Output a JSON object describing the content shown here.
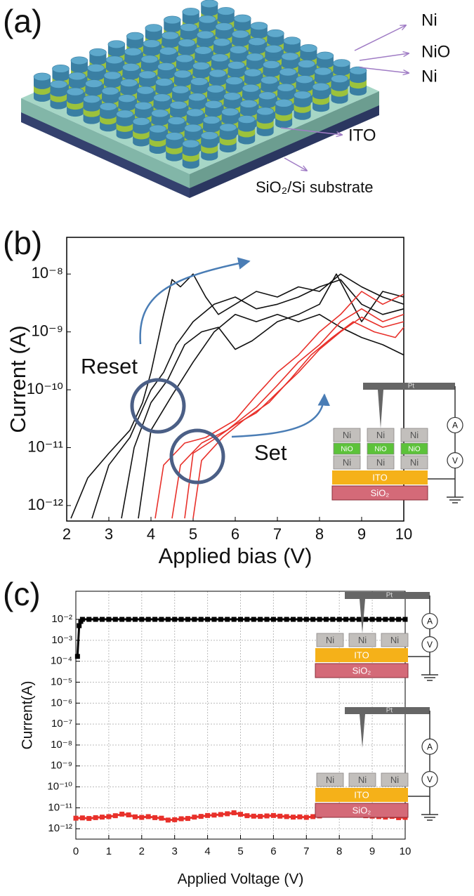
{
  "illustration": {
    "label": "(a)",
    "layer_labels": [
      "Ni",
      "NiO",
      "Ni",
      "ITO",
      "SiO₂/Si substrate"
    ]
  },
  "chart_data": [
    {
      "type": "line",
      "panel_label": "(b)",
      "xlabel": "Applied bias (V)",
      "ylabel": "Current (A)",
      "log_y": true,
      "xlim": [
        2,
        10
      ],
      "ylim": [
        5.4e-13,
        4.3e-08
      ],
      "xticks": [
        2,
        3,
        4,
        5,
        6,
        7,
        8,
        9,
        10
      ],
      "yticks": [
        {
          "value": 1e-12,
          "label": "10⁻¹²"
        },
        {
          "value": 1e-11,
          "label": "10⁻¹¹"
        },
        {
          "value": 1e-10,
          "label": "10⁻¹⁰"
        },
        {
          "value": 1e-09,
          "label": "10⁻⁹"
        },
        {
          "value": 1e-08,
          "label": "10⁻⁸"
        }
      ],
      "grid": false,
      "series": [
        {
          "color": "#111111",
          "x": [
            2.1,
            2.5,
            3,
            3.5,
            3.8,
            4.0,
            4.3,
            4.5,
            4.7,
            5,
            5.3,
            5.6,
            6,
            6.5,
            7,
            7.5,
            8,
            8.5,
            9,
            9.5,
            10
          ],
          "values": [
            6e-13,
            3e-12,
            8e-12,
            2e-11,
            6e-11,
            2e-10,
            2e-09,
            8e-09,
            6e-09,
            1e-08,
            4e-09,
            2e-09,
            3e-09,
            5e-09,
            4e-09,
            6e-09,
            5e-09,
            1e-08,
            6e-09,
            4e-09,
            3e-09
          ]
        },
        {
          "color": "#111111",
          "x": [
            2.6,
            3,
            3.5,
            4,
            4.3,
            4.6,
            5,
            5.5,
            6,
            6.5,
            7,
            7.5,
            8,
            8.5,
            9,
            9.5,
            10
          ],
          "values": [
            6e-13,
            5e-12,
            1.5e-11,
            1e-10,
            2e-10,
            6e-10,
            1.5e-09,
            3e-09,
            4e-09,
            2.5e-09,
            3e-09,
            4e-09,
            6e-09,
            8e-09,
            3e-09,
            2e-09,
            2.5e-09
          ]
        },
        {
          "color": "#111111",
          "x": [
            3.3,
            3.6,
            4,
            4.4,
            4.8,
            5.2,
            5.6,
            6,
            6.4,
            7,
            7.5,
            8,
            8.4,
            9,
            9.5,
            10
          ],
          "values": [
            6e-13,
            1e-11,
            6e-11,
            1.5e-10,
            6e-10,
            1e-09,
            1.2e-09,
            5e-10,
            7e-10,
            1.5e-09,
            2e-09,
            3e-09,
            1e-08,
            1.5e-09,
            5e-09,
            4e-09
          ]
        },
        {
          "color": "#111111",
          "x": [
            3.7,
            4,
            4.5,
            5,
            5.5,
            6,
            6.5,
            7,
            7.5,
            8,
            8.5,
            9,
            9.5,
            10
          ],
          "values": [
            6e-13,
            2e-11,
            8e-11,
            3e-10,
            1e-09,
            2e-09,
            1.5e-09,
            2e-09,
            1.5e-09,
            2e-09,
            1.2e-09,
            8e-10,
            6e-10,
            4e-10
          ]
        },
        {
          "color": "#e8302a",
          "x": [
            4.1,
            4.3,
            4.8,
            5.3,
            6,
            6.5,
            7,
            7.5,
            8,
            8.5,
            9,
            9.5,
            10
          ],
          "values": [
            6e-13,
            5e-12,
            1.2e-11,
            1.5e-11,
            3e-11,
            8e-11,
            2e-10,
            4e-10,
            1e-09,
            2e-09,
            5e-09,
            3e-09,
            4.5e-09
          ]
        },
        {
          "color": "#e8302a",
          "x": [
            4.5,
            4.7,
            5.2,
            5.8,
            6.5,
            7,
            7.5,
            8,
            8.5,
            9,
            9.5,
            10
          ],
          "values": [
            6e-13,
            5e-12,
            1.2e-11,
            2e-11,
            5e-11,
            1.2e-10,
            3e-10,
            6e-10,
            1.5e-09,
            2.5e-09,
            1.5e-09,
            2e-09
          ]
        },
        {
          "color": "#e8302a",
          "x": [
            4.8,
            5,
            5.5,
            6,
            6.5,
            7,
            7.5,
            8,
            8.5,
            9,
            9.5,
            10
          ],
          "values": [
            6e-13,
            8e-12,
            1.4e-11,
            2.5e-11,
            4e-11,
            9e-11,
            2e-10,
            5e-10,
            1e-09,
            1.8e-09,
            1.2e-09,
            1.5e-09
          ]
        },
        {
          "color": "#e8302a",
          "x": [
            5.0,
            5.2,
            5.7,
            6.2,
            6.8,
            7.3,
            7.8,
            8.3,
            8.8,
            9.3,
            9.8,
            10
          ],
          "values": [
            6e-13,
            6e-12,
            1.5e-11,
            3e-11,
            6e-11,
            1.5e-10,
            4e-10,
            8e-10,
            1.5e-09,
            1e-09,
            8e-10,
            1.2e-09
          ]
        }
      ],
      "annotations": [
        "Reset",
        "Set"
      ],
      "inset": {
        "electrode": "Pt",
        "pillar": [
          "Ni",
          "NiO",
          "Ni"
        ],
        "layers": [
          "ITO",
          "SiO₂"
        ],
        "meters": [
          "A",
          "V"
        ]
      }
    },
    {
      "type": "line",
      "panel_label": "(c)",
      "marker": "square",
      "xlabel": "Applied Voltage (V)",
      "ylabel": "Current(A)",
      "log_y": true,
      "xlim": [
        0,
        10
      ],
      "ylim": [
        3.2e-13,
        0.22
      ],
      "xticks": [
        0,
        1,
        2,
        3,
        4,
        5,
        6,
        7,
        8,
        9,
        10
      ],
      "yticks": [
        {
          "value": 1e-12,
          "label": "10⁻¹²"
        },
        {
          "value": 1e-11,
          "label": "10⁻¹¹"
        },
        {
          "value": 1e-10,
          "label": "10⁻¹⁰"
        },
        {
          "value": 1e-09,
          "label": "10⁻⁹"
        },
        {
          "value": 1e-08,
          "label": "10⁻⁸"
        },
        {
          "value": 1e-07,
          "label": "10⁻⁷"
        },
        {
          "value": 1e-06,
          "label": "10⁻⁶"
        },
        {
          "value": 1e-05,
          "label": "10⁻⁵"
        },
        {
          "value": 0.0001,
          "label": "10⁻⁴"
        },
        {
          "value": 0.001,
          "label": "10⁻³"
        },
        {
          "value": 0.01,
          "label": "10⁻²"
        }
      ],
      "grid": true,
      "series": [
        {
          "color": "#000000",
          "x": [
            0.05,
            0.1,
            0.15,
            0.2,
            0.4,
            0.6,
            0.8,
            1.0,
            1.2,
            1.4,
            1.6,
            1.8,
            2.0,
            2.2,
            2.4,
            2.6,
            2.8,
            3.0,
            3.2,
            3.4,
            3.6,
            3.8,
            4.0,
            4.2,
            4.4,
            4.6,
            4.8,
            5.0,
            5.2,
            5.4,
            5.6,
            5.8,
            6.0,
            6.2,
            6.4,
            6.6,
            6.8,
            7.0,
            7.2,
            7.4,
            7.6,
            7.8,
            8.0,
            8.2,
            8.4,
            8.6,
            8.8,
            9.0,
            9.2,
            9.4,
            9.6,
            9.8,
            10.0
          ],
          "values": [
            0.00017,
            0.005,
            0.008,
            0.01,
            0.01,
            0.01,
            0.01,
            0.01,
            0.01,
            0.01,
            0.01,
            0.01,
            0.01,
            0.01,
            0.01,
            0.01,
            0.01,
            0.01,
            0.01,
            0.01,
            0.01,
            0.01,
            0.01,
            0.01,
            0.01,
            0.01,
            0.01,
            0.01,
            0.01,
            0.01,
            0.01,
            0.01,
            0.01,
            0.01,
            0.01,
            0.01,
            0.01,
            0.01,
            0.01,
            0.01,
            0.01,
            0.01,
            0.01,
            0.01,
            0.01,
            0.01,
            0.01,
            0.01,
            0.01,
            0.01,
            0.01,
            0.01,
            0.01
          ]
        },
        {
          "color": "#e8302a",
          "x": [
            0,
            0.2,
            0.4,
            0.6,
            0.8,
            1.0,
            1.2,
            1.4,
            1.6,
            1.8,
            2.0,
            2.2,
            2.4,
            2.6,
            2.8,
            3.0,
            3.2,
            3.4,
            3.6,
            3.8,
            4.0,
            4.2,
            4.4,
            4.6,
            4.8,
            5.0,
            5.2,
            5.4,
            5.6,
            5.8,
            6.0,
            6.2,
            6.4,
            6.6,
            6.8,
            7.0,
            7.2,
            7.4,
            7.6,
            7.8,
            8.0,
            8.2,
            8.4,
            8.6,
            8.8,
            9.0,
            9.2,
            9.4,
            9.6,
            9.8,
            10.0
          ],
          "values": [
            3.2e-12,
            3.3e-12,
            3.1e-12,
            3.4e-12,
            3.6e-12,
            3.8e-12,
            4.2e-12,
            5e-12,
            4.6e-12,
            3.7e-12,
            3.5e-12,
            3.8e-12,
            3.4e-12,
            3.2e-12,
            2.6e-12,
            2.7e-12,
            3e-12,
            3.1e-12,
            3.6e-12,
            3.9e-12,
            4.3e-12,
            4.5e-12,
            4.8e-12,
            5.2e-12,
            5.8e-12,
            4.9e-12,
            4.2e-12,
            4e-12,
            3.9e-12,
            4.1e-12,
            4.3e-12,
            4e-12,
            3.8e-12,
            3.6e-12,
            3.7e-12,
            3.5e-12,
            3.8e-12,
            4.1e-12,
            4.6e-12,
            5.2e-12,
            5.9e-12,
            5.4e-12,
            4.9e-12,
            4.4e-12,
            4.2e-12,
            4e-12,
            3.8e-12,
            3.6e-12,
            3.9e-12,
            3.4e-12,
            3.5e-12
          ]
        }
      ],
      "insets": [
        {
          "electrode": "Pt",
          "pillar": [
            "Ni"
          ],
          "layers": [
            "ITO",
            "SiO₂"
          ],
          "meters": [
            "A",
            "V"
          ]
        },
        {
          "electrode": "Pt",
          "pillar": [
            "Ni"
          ],
          "layers": [
            "ITO",
            "SiO₂"
          ],
          "meters": [
            "A",
            "V"
          ]
        }
      ]
    }
  ]
}
